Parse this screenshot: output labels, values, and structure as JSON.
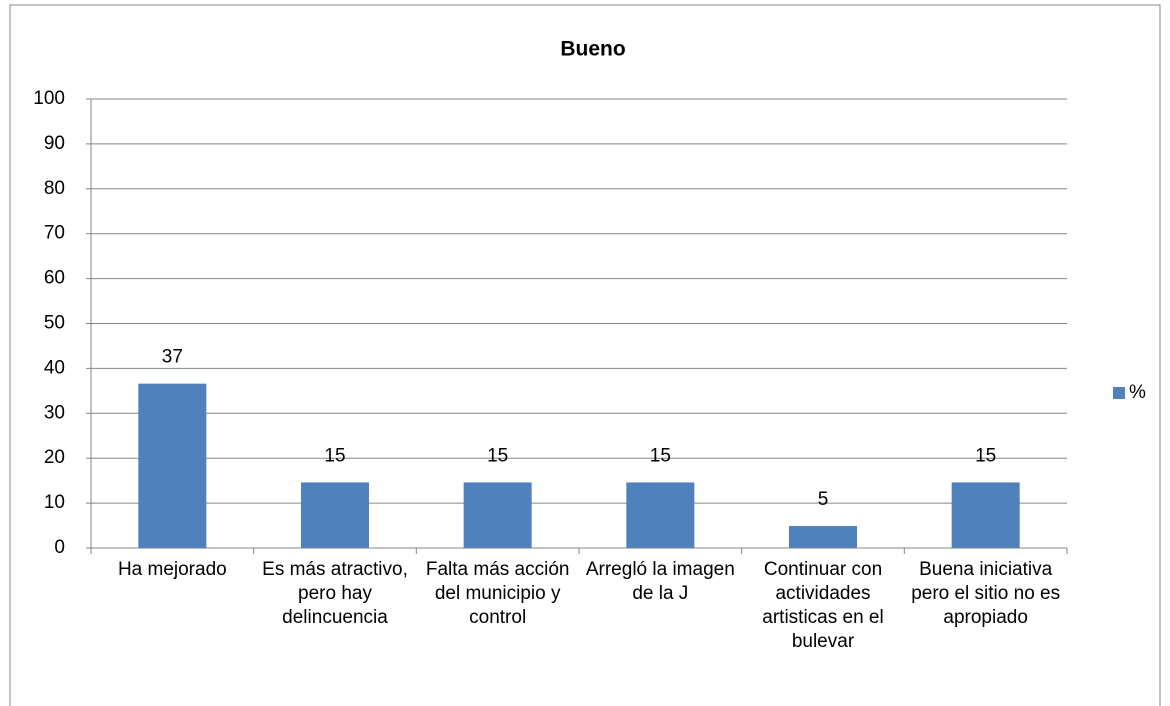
{
  "chart_data": {
    "type": "bar",
    "title": "Bueno",
    "categories": [
      "Ha mejorado",
      "Es más atractivo, pero hay delincuencia",
      "Falta más acción del municipio y control",
      "Arregló la imagen de la J",
      "Continuar con actividades artisticas en el bulevar",
      "Buena iniciativa pero el sitio no es apropiado"
    ],
    "series": [
      {
        "name": "%",
        "color": "#4f81bd",
        "values": [
          36.6,
          14.6,
          14.6,
          14.6,
          4.9,
          14.6
        ],
        "value_labels": [
          "37",
          "15",
          "15",
          "15",
          "5",
          "15"
        ]
      }
    ],
    "ylim": [
      0,
      100
    ],
    "yticks": [
      0,
      10,
      20,
      30,
      40,
      50,
      60,
      70,
      80,
      90,
      100
    ],
    "grid": true,
    "legend": "right"
  }
}
